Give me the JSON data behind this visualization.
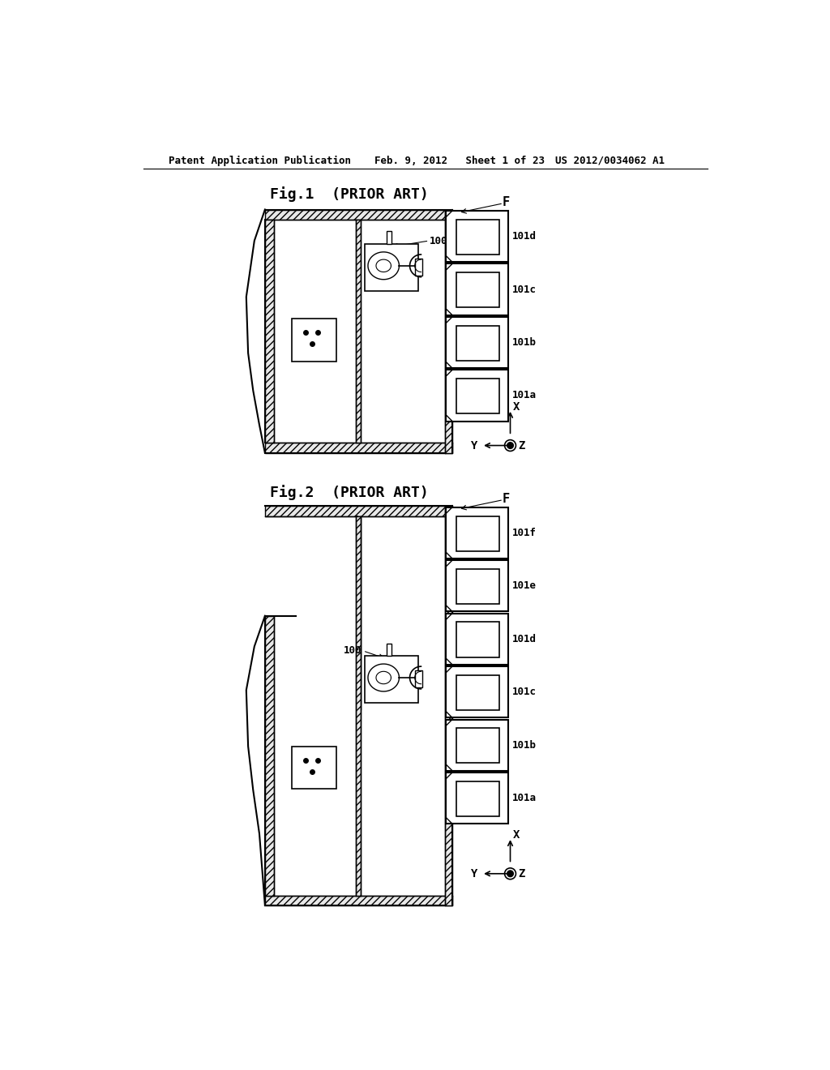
{
  "bg_color": "#ffffff",
  "header_left": "Patent Application Publication",
  "header_mid": "Feb. 9, 2012   Sheet 1 of 23",
  "header_right": "US 2012/0034062 A1",
  "fig1_title": "Fig.1  (PRIOR ART)",
  "fig2_title": "Fig.2  (PRIOR ART)",
  "fig1_labels": [
    "101d",
    "101c",
    "101b",
    "101a"
  ],
  "fig2_labels": [
    "101f",
    "101e",
    "101d",
    "101c",
    "101b",
    "101a"
  ],
  "label_100": "100",
  "label_F": "F",
  "label_X": "X",
  "label_Y": "Y",
  "label_Z": "Z"
}
